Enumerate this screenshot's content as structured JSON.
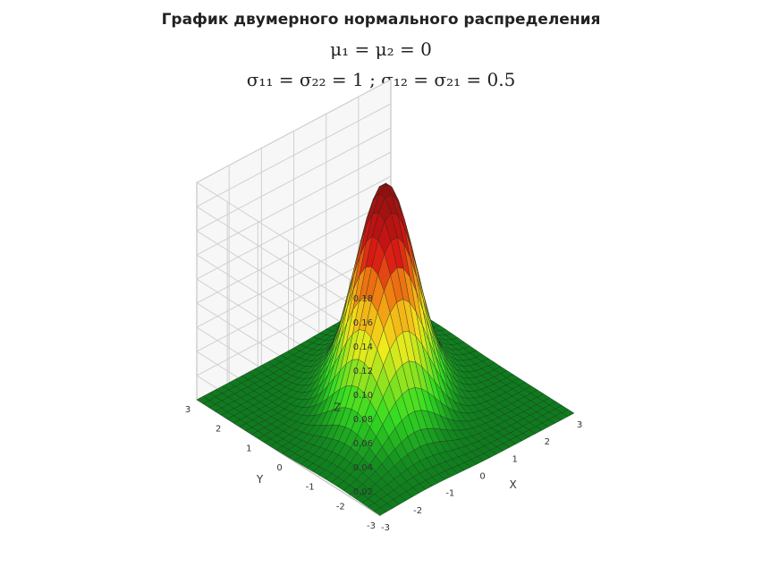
{
  "chart_data": {
    "type": "surface",
    "title": "График двумерного нормального распределения",
    "subtitle_line1": "μ₁ = μ₂ = 0",
    "subtitle_line2": "σ₁₁ = σ₂₂ = 1 ; σ₁₂ = σ₂₁ = 0.5",
    "mu": [
      0,
      0
    ],
    "sigma11": 1,
    "sigma22": 1,
    "sigma12": 0.5,
    "xlabel": "X",
    "ylabel": "Y",
    "zlabel": "Z",
    "xlim": [
      -3,
      3
    ],
    "ylim": [
      -3,
      3
    ],
    "zlim": [
      0,
      0.18
    ],
    "x_ticks": [
      "-3",
      "-2",
      "-1",
      "0",
      "1",
      "2",
      "3"
    ],
    "y_ticks": [
      "-3",
      "-2",
      "-1",
      "0",
      "1",
      "2",
      "3"
    ],
    "z_ticks": [
      "0.02",
      "0.04",
      "0.06",
      "0.08",
      "0.10",
      "0.12",
      "0.14",
      "0.16",
      "0.18"
    ],
    "grid": true,
    "colors": {
      "low": "#0f7a1e",
      "mid_green": "#33dd22",
      "yellow": "#f4ea1c",
      "orange": "#f28a12",
      "red": "#d81414",
      "top": "#8a1010",
      "wall": "#f7f7f7",
      "wall_grid": "#d0d0d0",
      "mesh": "#1c2a1c"
    }
  }
}
